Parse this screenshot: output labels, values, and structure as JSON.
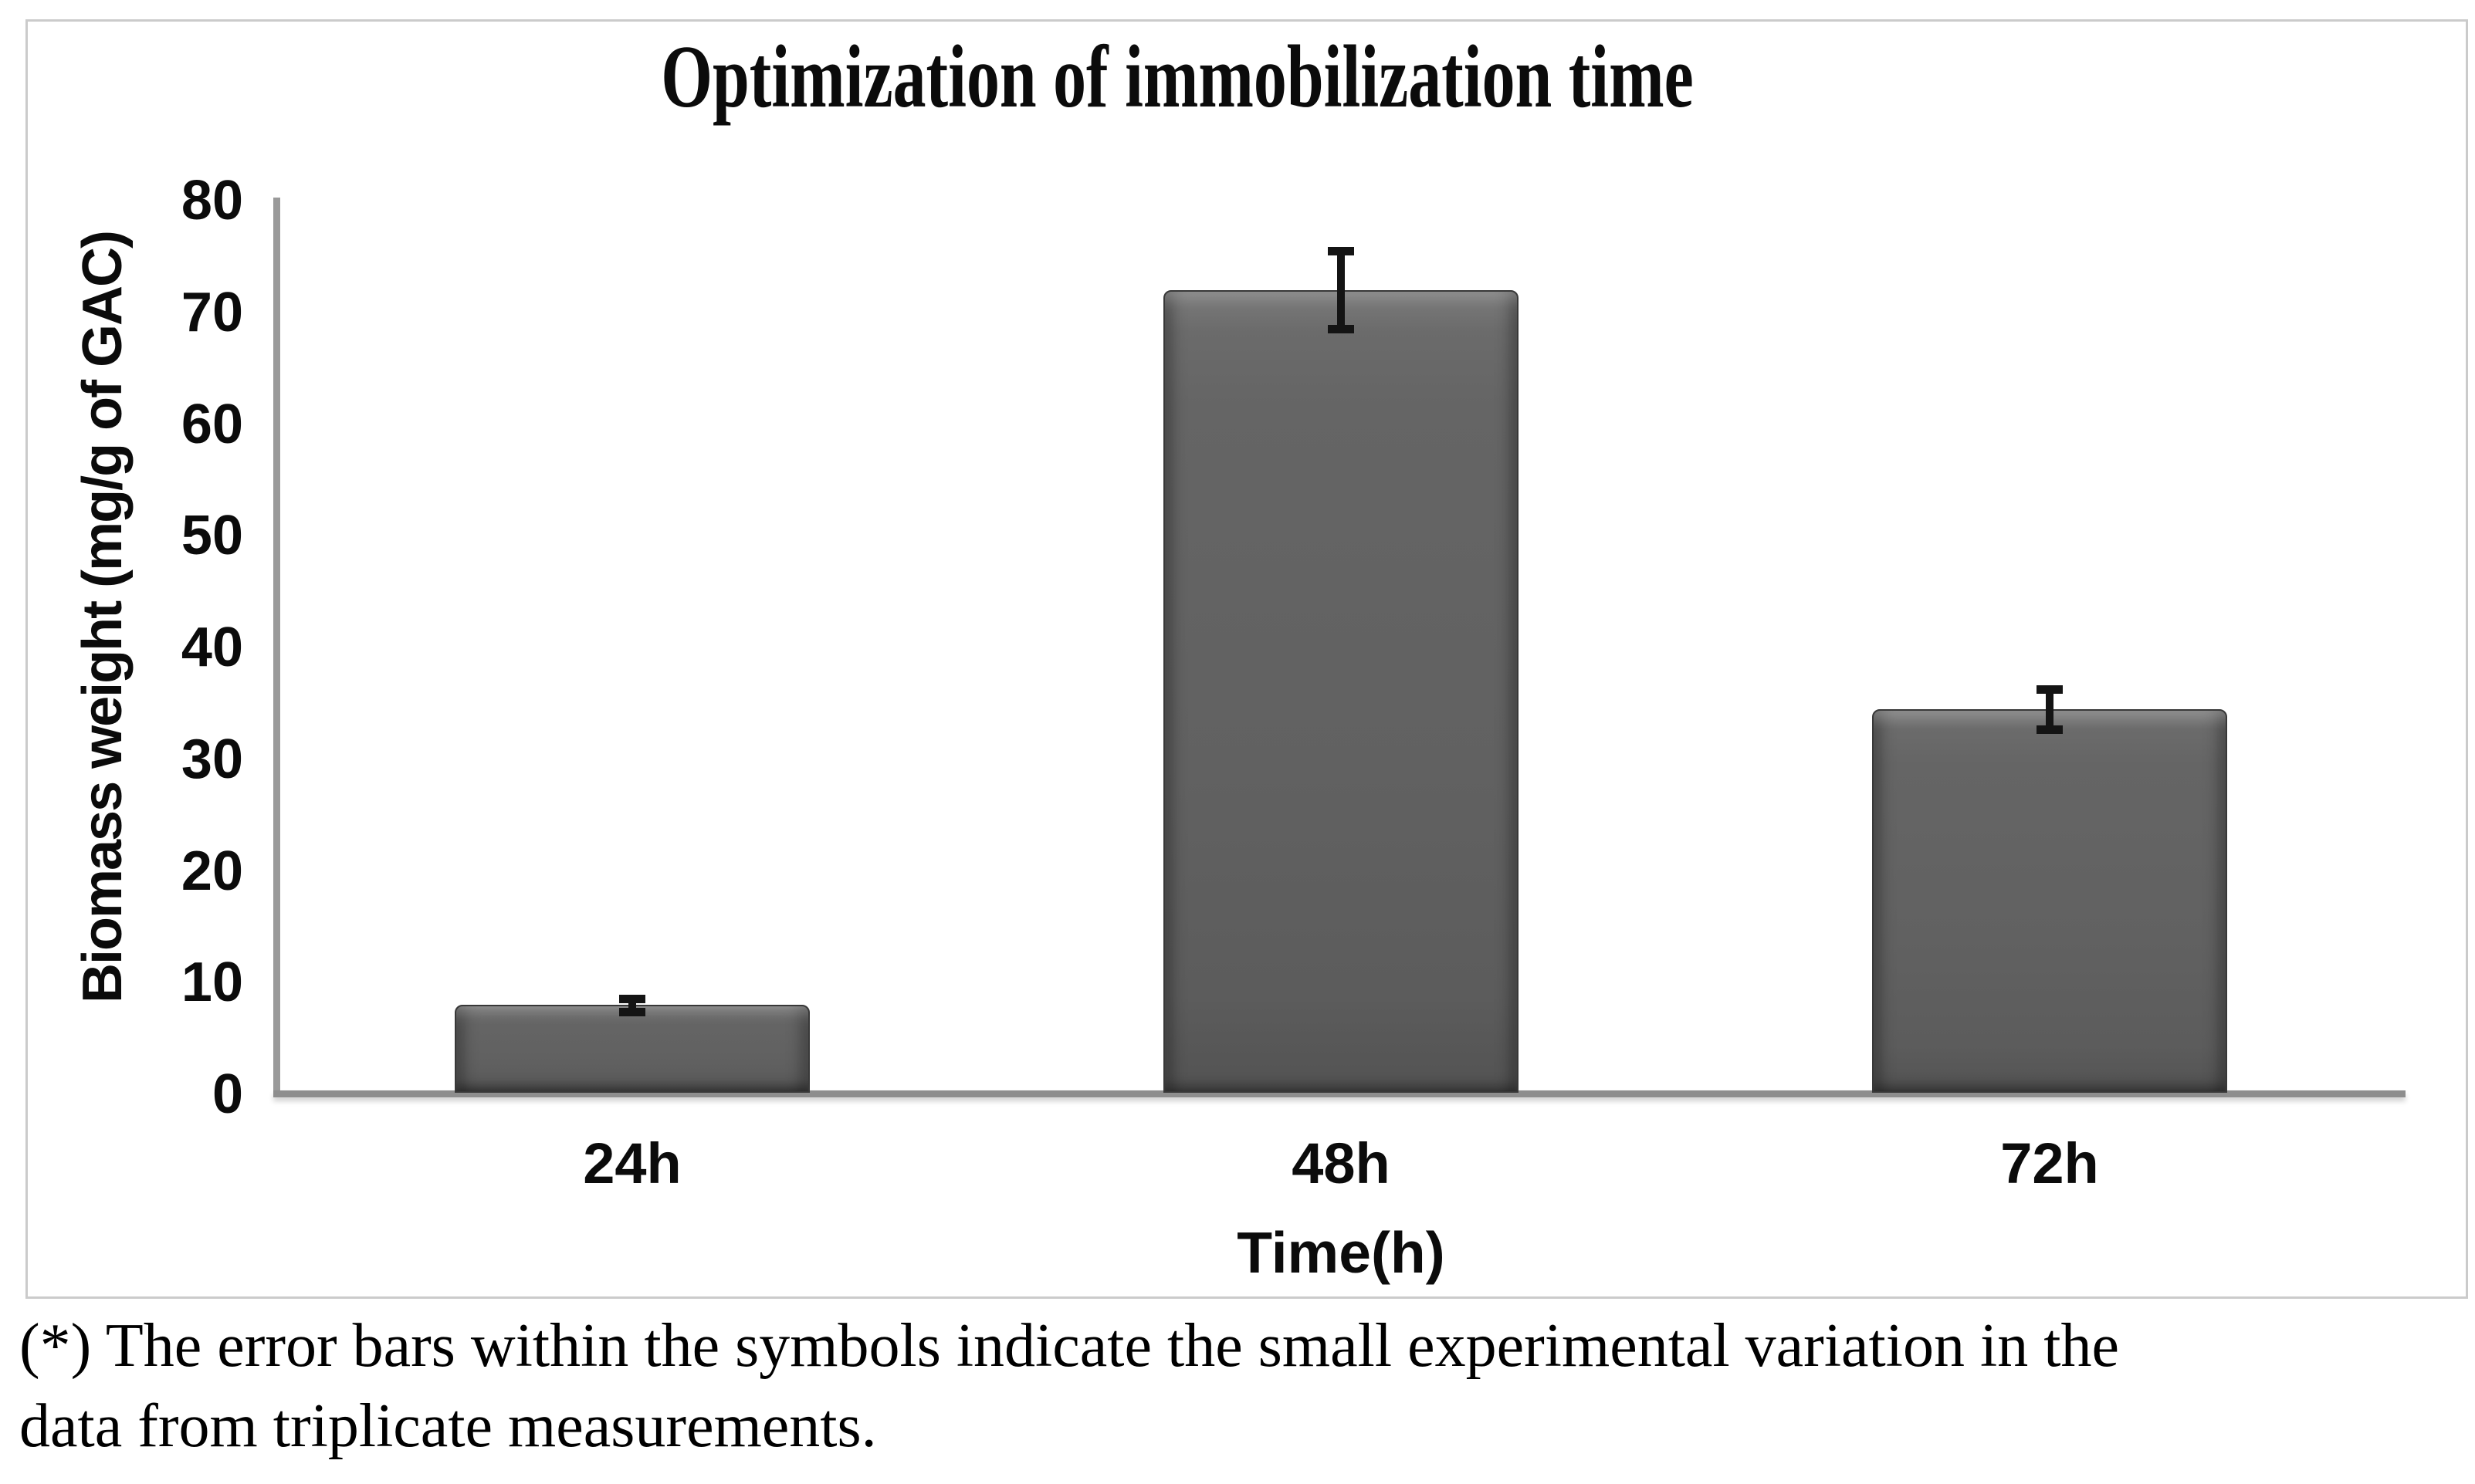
{
  "figure": {
    "background_color": "#ffffff",
    "frame_border_color": "#cbcbcb",
    "footnote": {
      "line1": "(*) The error bars within the symbols indicate the small experimental variation in the",
      "line2": "data from triplicate measurements."
    }
  },
  "chart_data": {
    "type": "bar",
    "title": "Optimization of immobilization time",
    "categories": [
      "24h",
      "48h",
      "72h"
    ],
    "values": [
      8,
      72,
      34.5
    ],
    "error_bars": [
      0.6,
      3.5,
      1.8
    ],
    "xlabel": "Time(h)",
    "ylabel": "Biomass weight (mg/g of GAC)",
    "ylim": [
      0,
      80
    ],
    "yticks": [
      0,
      10,
      20,
      30,
      40,
      50,
      60,
      70,
      80
    ],
    "grid": false,
    "legend": "none",
    "bar_color": "#616161",
    "bar_edge_color": "#383838",
    "axis_color": "#8e8e8e",
    "error_bar_color": "#141414",
    "text_color": "#0b0b0b"
  }
}
